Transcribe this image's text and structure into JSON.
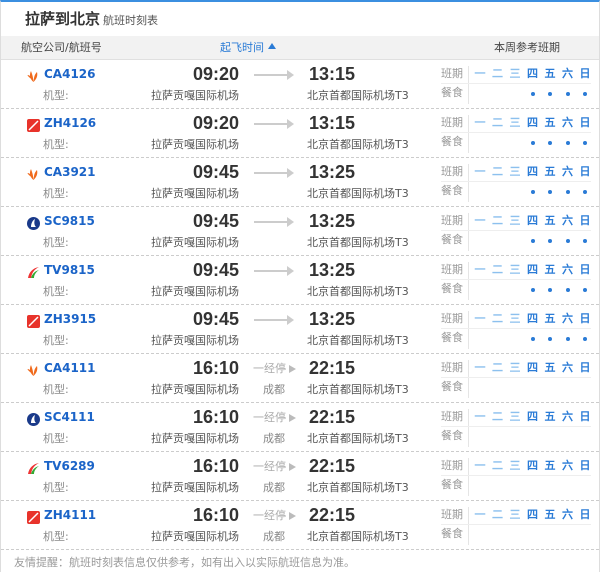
{
  "header": {
    "title": "拉萨到北京",
    "subtitle": "航班时刻表"
  },
  "columns": {
    "airline": "航空公司/航班号",
    "departure": "起飞时间",
    "weekly": "本周参考班期"
  },
  "labels": {
    "model": "机型:",
    "schedule": "班期",
    "meal": "餐食",
    "stop": "一经停"
  },
  "weekdays": [
    "一",
    "二",
    "三",
    "四",
    "五",
    "六",
    "日"
  ],
  "colors": {
    "active_day": "#2a7bd6",
    "inactive_day": "#8cc0ee",
    "accent": "#3b8fe0"
  },
  "flights": [
    {
      "code": "CA4126",
      "airline_icon": "air-china-logo",
      "dep": "09:20",
      "arr": "13:15",
      "dep_airport": "拉萨贡嘎国际机场",
      "arr_airport": "北京首都国际机场T3",
      "stop": "",
      "days": [
        0,
        0,
        0,
        1,
        1,
        1,
        1
      ],
      "meals": [
        0,
        0,
        0,
        1,
        1,
        1,
        1
      ]
    },
    {
      "code": "ZH4126",
      "airline_icon": "shenzhen-airlines-logo",
      "dep": "09:20",
      "arr": "13:15",
      "dep_airport": "拉萨贡嘎国际机场",
      "arr_airport": "北京首都国际机场T3",
      "stop": "",
      "days": [
        0,
        0,
        0,
        1,
        1,
        1,
        1
      ],
      "meals": [
        0,
        0,
        0,
        1,
        1,
        1,
        1
      ]
    },
    {
      "code": "CA3921",
      "airline_icon": "air-china-logo",
      "dep": "09:45",
      "arr": "13:25",
      "dep_airport": "拉萨贡嘎国际机场",
      "arr_airport": "北京首都国际机场T3",
      "stop": "",
      "days": [
        0,
        0,
        0,
        1,
        1,
        1,
        1
      ],
      "meals": [
        0,
        0,
        0,
        1,
        1,
        1,
        1
      ]
    },
    {
      "code": "SC9815",
      "airline_icon": "shandong-airlines-logo",
      "dep": "09:45",
      "arr": "13:25",
      "dep_airport": "拉萨贡嘎国际机场",
      "arr_airport": "北京首都国际机场T3",
      "stop": "",
      "days": [
        0,
        0,
        0,
        1,
        1,
        1,
        1
      ],
      "meals": [
        0,
        0,
        0,
        1,
        1,
        1,
        1
      ]
    },
    {
      "code": "TV9815",
      "airline_icon": "tibet-airlines-logo",
      "dep": "09:45",
      "arr": "13:25",
      "dep_airport": "拉萨贡嘎国际机场",
      "arr_airport": "北京首都国际机场T3",
      "stop": "",
      "days": [
        0,
        0,
        0,
        1,
        1,
        1,
        1
      ],
      "meals": [
        0,
        0,
        0,
        1,
        1,
        1,
        1
      ]
    },
    {
      "code": "ZH3915",
      "airline_icon": "shenzhen-airlines-logo",
      "dep": "09:45",
      "arr": "13:25",
      "dep_airport": "拉萨贡嘎国际机场",
      "arr_airport": "北京首都国际机场T3",
      "stop": "",
      "days": [
        0,
        0,
        0,
        1,
        1,
        1,
        1
      ],
      "meals": [
        0,
        0,
        0,
        1,
        1,
        1,
        1
      ]
    },
    {
      "code": "CA4111",
      "airline_icon": "air-china-logo",
      "dep": "16:10",
      "arr": "22:15",
      "dep_airport": "拉萨贡嘎国际机场",
      "arr_airport": "北京首都国际机场T3",
      "stop": "成都",
      "days": [
        0,
        0,
        0,
        1,
        1,
        1,
        1
      ],
      "meals": [
        0,
        0,
        0,
        0,
        0,
        0,
        0
      ]
    },
    {
      "code": "SC4111",
      "airline_icon": "shandong-airlines-logo",
      "dep": "16:10",
      "arr": "22:15",
      "dep_airport": "拉萨贡嘎国际机场",
      "arr_airport": "北京首都国际机场T3",
      "stop": "成都",
      "days": [
        0,
        0,
        0,
        1,
        1,
        1,
        1
      ],
      "meals": [
        0,
        0,
        0,
        0,
        0,
        0,
        0
      ]
    },
    {
      "code": "TV6289",
      "airline_icon": "tibet-airlines-logo",
      "dep": "16:10",
      "arr": "22:15",
      "dep_airport": "拉萨贡嘎国际机场",
      "arr_airport": "北京首都国际机场T3",
      "stop": "成都",
      "days": [
        0,
        0,
        0,
        1,
        1,
        1,
        1
      ],
      "meals": [
        0,
        0,
        0,
        0,
        0,
        0,
        0
      ]
    },
    {
      "code": "ZH4111",
      "airline_icon": "shenzhen-airlines-logo",
      "dep": "16:10",
      "arr": "22:15",
      "dep_airport": "拉萨贡嘎国际机场",
      "arr_airport": "北京首都国际机场T3",
      "stop": "成都",
      "days": [
        0,
        0,
        0,
        1,
        1,
        1,
        1
      ],
      "meals": [
        0,
        0,
        0,
        0,
        0,
        0,
        0
      ]
    }
  ],
  "footer": "友情提醒：航班时刻表信息仅供参考，如有出入以实际航班信息为准。"
}
